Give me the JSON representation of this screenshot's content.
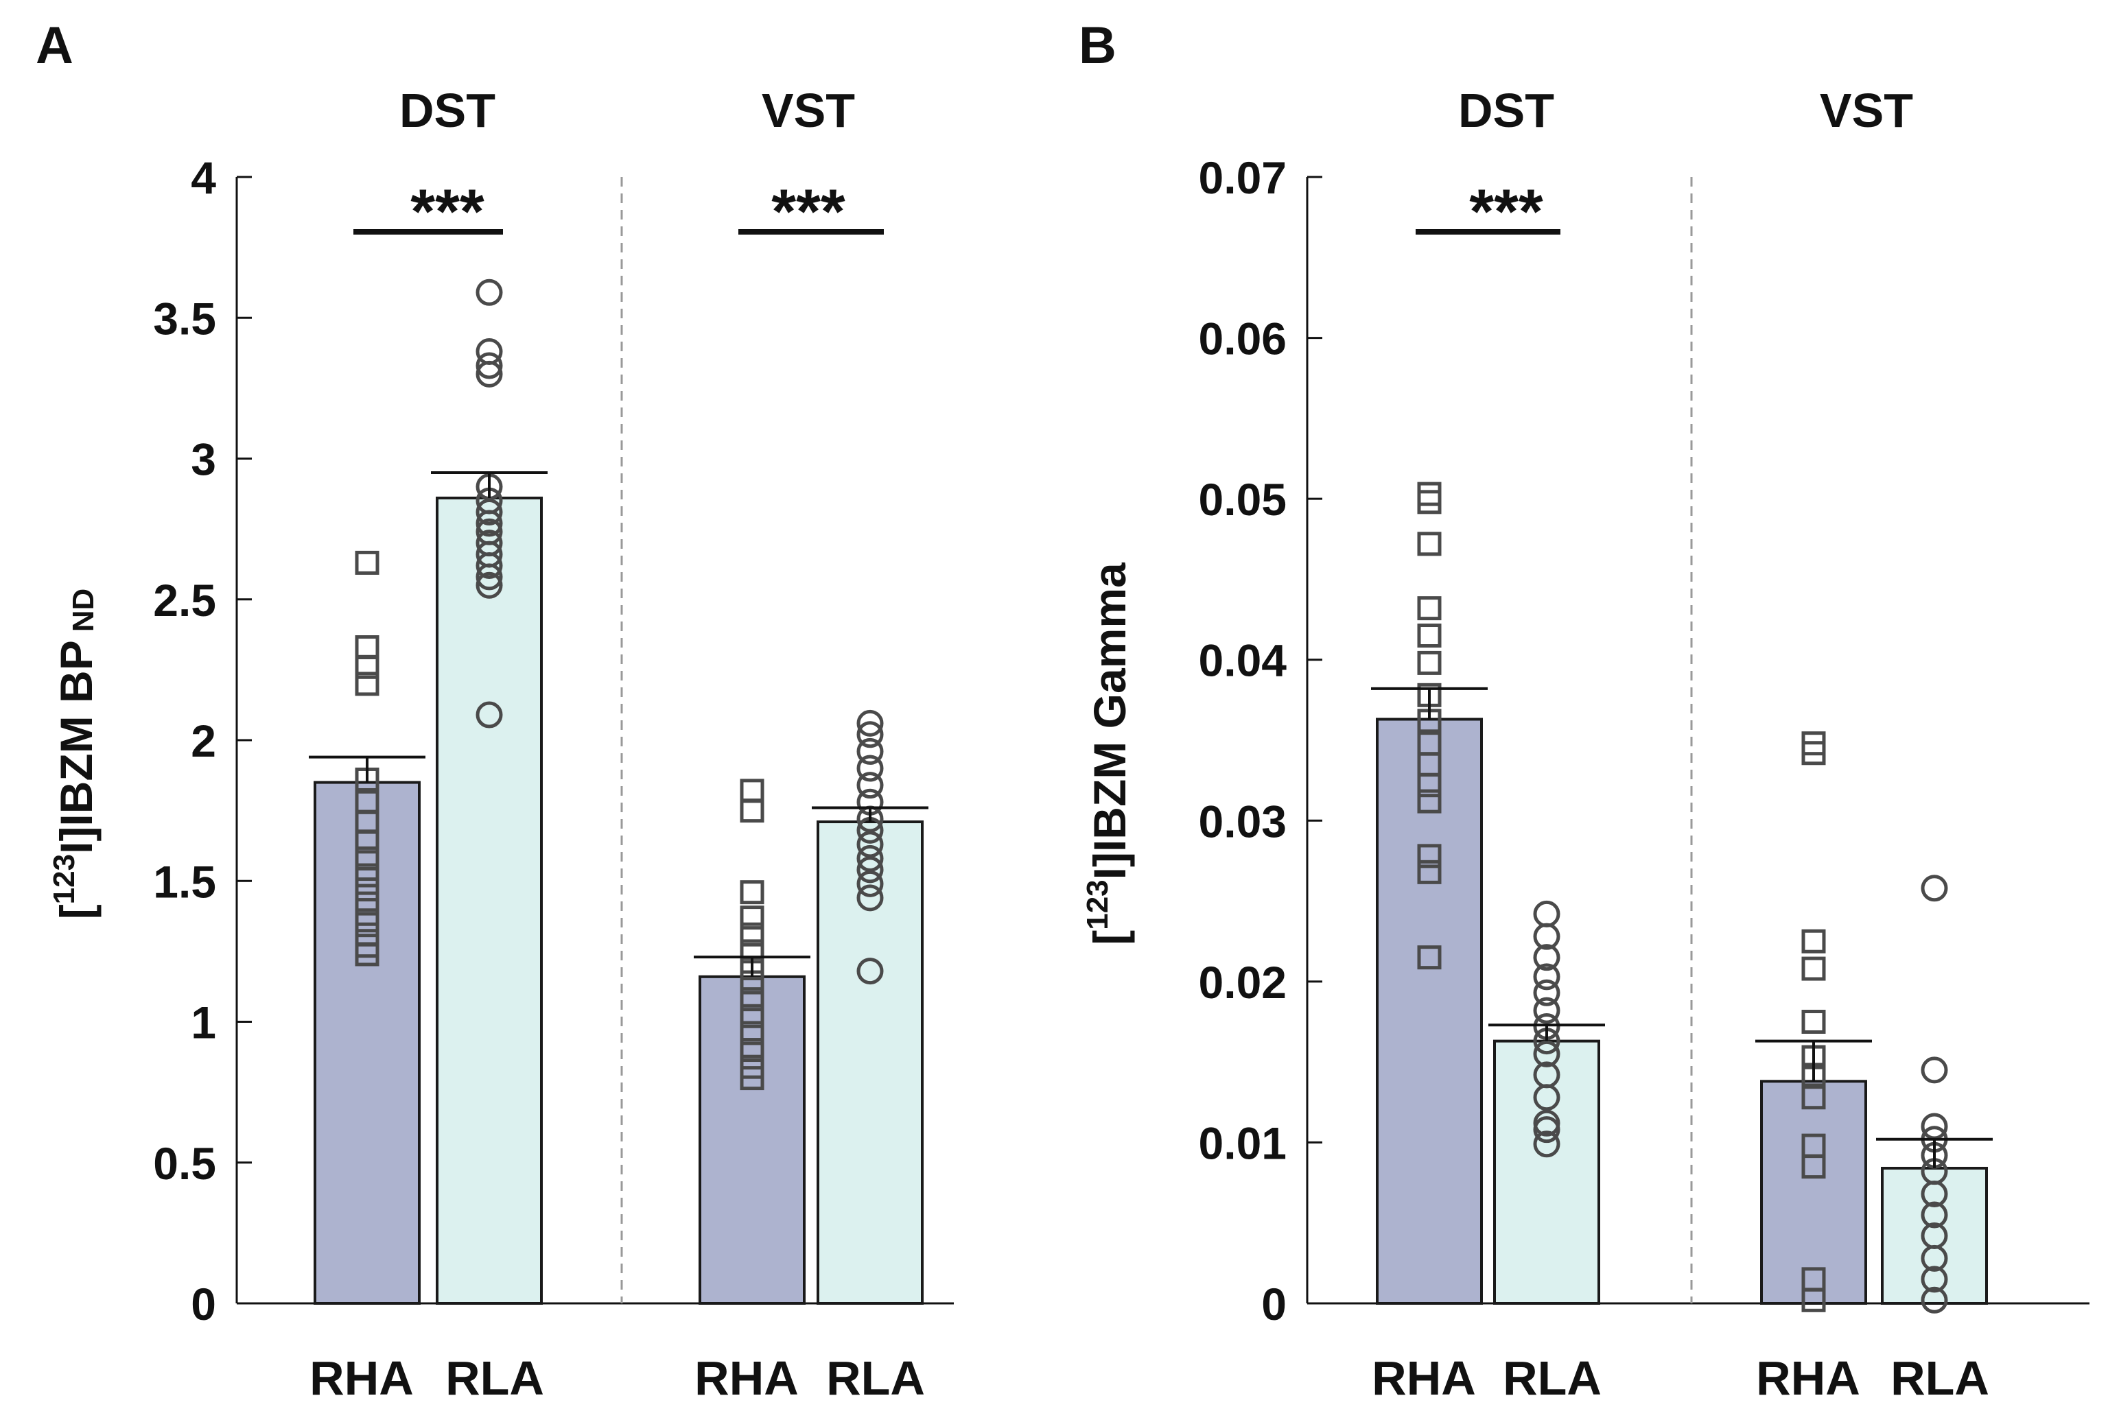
{
  "colors": {
    "rha": "#adb3cf",
    "rla": "#dcf1ef",
    "edge": "#1a1a1a",
    "marker": "#4a4a4a",
    "divider": "#999999"
  },
  "chart_data": [
    {
      "type": "bar",
      "panel_label": "A",
      "ylabel": {
        "bracket_open": "[",
        "sup": "123",
        "main": "I]IBZM BP",
        "sub": "ND"
      },
      "ylim": [
        0,
        4
      ],
      "yticks": [
        0,
        0.5,
        1,
        1.5,
        2,
        2.5,
        3,
        3.5,
        4
      ],
      "ytick_labels": [
        "0",
        "0.5",
        "1",
        "1.5",
        "2",
        "2.5",
        "3",
        "3.5",
        "4"
      ],
      "groups": [
        {
          "title": "DST",
          "significance": "***",
          "bars": [
            {
              "label": "RHA",
              "mean": 1.85,
              "sem": 0.09,
              "marker": "square",
              "points": [
                1.24,
                1.27,
                1.31,
                1.36,
                1.42,
                1.47,
                1.52,
                1.58,
                1.64,
                1.71,
                1.78,
                1.86,
                2.2,
                2.26,
                2.33,
                2.63
              ]
            },
            {
              "label": "RLA",
              "mean": 2.86,
              "sem": 0.09,
              "marker": "circle",
              "points": [
                2.09,
                2.55,
                2.58,
                2.62,
                2.66,
                2.7,
                2.74,
                2.77,
                2.81,
                2.85,
                2.9,
                3.3,
                3.33,
                3.38,
                3.59
              ]
            }
          ]
        },
        {
          "title": "VST",
          "significance": "***",
          "bars": [
            {
              "label": "RHA",
              "mean": 1.16,
              "sem": 0.07,
              "marker": "square",
              "points": [
                0.8,
                0.84,
                0.9,
                0.96,
                1.02,
                1.08,
                1.14,
                1.19,
                1.25,
                1.31,
                1.37,
                1.46,
                1.75,
                1.82
              ]
            },
            {
              "label": "RLA",
              "mean": 1.71,
              "sem": 0.05,
              "marker": "circle",
              "points": [
                1.18,
                1.44,
                1.49,
                1.54,
                1.58,
                1.63,
                1.68,
                1.72,
                1.78,
                1.84,
                1.9,
                1.96,
                2.02,
                2.06
              ]
            }
          ]
        }
      ]
    },
    {
      "type": "bar",
      "panel_label": "B",
      "ylabel": {
        "bracket_open": "[",
        "sup": "123",
        "main": "I]IBZM Gamma",
        "sub": ""
      },
      "ylim": [
        0,
        0.07
      ],
      "yticks": [
        0,
        0.01,
        0.02,
        0.03,
        0.04,
        0.05,
        0.06,
        0.07
      ],
      "ytick_labels": [
        "0",
        "0.01",
        "0.02",
        "0.03",
        "0.04",
        "0.05",
        "0.06",
        "0.07"
      ],
      "groups": [
        {
          "title": "DST",
          "significance": "***",
          "bars": [
            {
              "label": "RHA",
              "mean": 0.0363,
              "sem": 0.0019,
              "marker": "square",
              "points": [
                0.0215,
                0.0268,
                0.0278,
                0.0312,
                0.0322,
                0.0335,
                0.0348,
                0.0362,
                0.0378,
                0.0398,
                0.0415,
                0.0432,
                0.0472,
                0.0498,
                0.0503
              ]
            },
            {
              "label": "RLA",
              "mean": 0.0163,
              "sem": 0.001,
              "marker": "circle",
              "points": [
                0.0099,
                0.0108,
                0.0112,
                0.0128,
                0.0142,
                0.0155,
                0.0163,
                0.0172,
                0.0182,
                0.0193,
                0.0203,
                0.0215,
                0.0228,
                0.0242
              ]
            }
          ]
        },
        {
          "title": "VST",
          "significance": "",
          "bars": [
            {
              "label": "RHA",
              "mean": 0.0138,
              "sem": 0.0025,
              "marker": "square",
              "points": [
                0.0002,
                0.0015,
                0.0085,
                0.0098,
                0.0128,
                0.0142,
                0.0153,
                0.0175,
                0.0208,
                0.0225,
                0.0342,
                0.0348
              ]
            },
            {
              "label": "RLA",
              "mean": 0.0084,
              "sem": 0.0018,
              "marker": "circle",
              "points": [
                0.0002,
                0.0015,
                0.0028,
                0.0042,
                0.0055,
                0.0068,
                0.0082,
                0.0092,
                0.0102,
                0.011,
                0.0145,
                0.0258
              ]
            }
          ]
        }
      ]
    }
  ]
}
